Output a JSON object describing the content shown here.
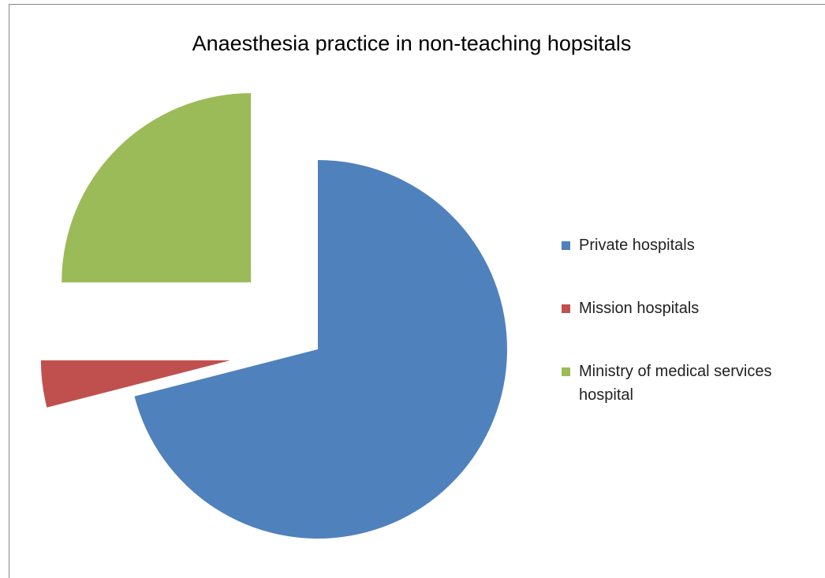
{
  "chart_data": {
    "type": "pie",
    "title": "Anaesthesia practice in non-teaching hopsitals",
    "categories": [
      "Private hospitals",
      "Mission hospitals",
      "Ministry of medical services hospital"
    ],
    "values": [
      71,
      4,
      25
    ],
    "colors": [
      "#4f81bd",
      "#c0504d",
      "#9bbb59"
    ],
    "legend": "right"
  }
}
